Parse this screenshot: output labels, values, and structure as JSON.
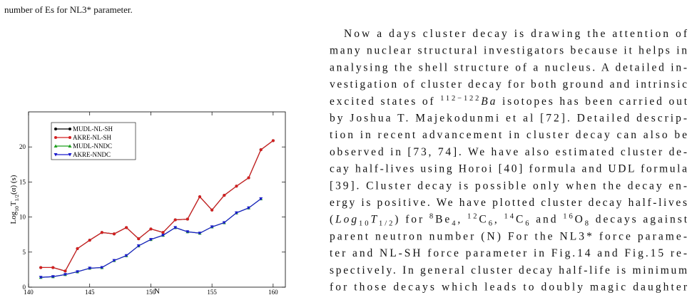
{
  "caption_fragment": "number of Es for NL3* parameter.",
  "chart_data": {
    "type": "line",
    "xlabel": "N",
    "ylabel": [
      "Log",
      {
        "text": "10",
        "style": "sub"
      },
      "T",
      {
        "text": "1/2",
        "style": "sub"
      },
      "(α) (s)"
    ],
    "xlim": [
      140,
      161
    ],
    "xticks": [
      140,
      145,
      150,
      155,
      160
    ],
    "ylim": [
      0,
      25
    ],
    "yticks": [
      0,
      5,
      10,
      15,
      20
    ],
    "legend": "upper left",
    "series": [
      {
        "name": "MUDL-NL-SH",
        "color": "#000000",
        "marker": "circle",
        "x": [
          141,
          142,
          143,
          144,
          145,
          146,
          147,
          148,
          149,
          150,
          151,
          152,
          153,
          154,
          155,
          156,
          157,
          158,
          159,
          160
        ],
        "values": [
          2.8,
          2.8,
          2.3,
          5.5,
          6.7,
          7.8,
          7.6,
          8.5,
          6.9,
          8.3,
          7.8,
          9.6,
          9.7,
          12.9,
          11.0,
          13.1,
          14.4,
          15.6,
          19.6,
          20.9
        ]
      },
      {
        "name": "AKRE-NL-SH",
        "color": "#d42020",
        "marker": "circle",
        "x": [
          141,
          142,
          143,
          144,
          145,
          146,
          147,
          148,
          149,
          150,
          151,
          152,
          153,
          154,
          155,
          156,
          157,
          158,
          159,
          160
        ],
        "values": [
          2.8,
          2.8,
          2.3,
          5.5,
          6.7,
          7.8,
          7.6,
          8.5,
          6.9,
          8.3,
          7.8,
          9.6,
          9.7,
          12.9,
          11.0,
          13.1,
          14.4,
          15.6,
          19.6,
          20.9
        ]
      },
      {
        "name": "MUDL-NNDC",
        "color": "#1fa01f",
        "marker": "triangle-up",
        "x": [
          141,
          142,
          143,
          144,
          145,
          146,
          147,
          148,
          149,
          150,
          151,
          152,
          153,
          154,
          155,
          156,
          157,
          158,
          159
        ],
        "values": [
          1.4,
          1.5,
          1.8,
          2.2,
          2.7,
          2.8,
          3.8,
          4.5,
          5.9,
          6.8,
          7.4,
          8.5,
          7.9,
          7.7,
          8.6,
          9.2,
          10.6,
          11.3,
          12.6
        ]
      },
      {
        "name": "AKRE-NNDC",
        "color": "#1a1acc",
        "marker": "triangle-down",
        "x": [
          141,
          142,
          143,
          144,
          145,
          146,
          147,
          148,
          149,
          150,
          151,
          152,
          153,
          154,
          155,
          156,
          157,
          158,
          159
        ],
        "values": [
          1.4,
          1.5,
          1.8,
          2.2,
          2.7,
          2.8,
          3.8,
          4.5,
          5.9,
          6.8,
          7.4,
          8.5,
          7.9,
          7.7,
          8.6,
          9.2,
          10.6,
          11.3,
          12.6
        ]
      }
    ]
  },
  "body_text": [
    [
      "Now a days cluster decay is drawing the attention of"
    ],
    [
      "many nuclear structural investigators because it helps in"
    ],
    [
      "analysing the shell structure of a nucleus. A detailed in-"
    ],
    [
      "vestigation of cluster decay for both ground and intrinsic"
    ],
    [
      "excited states of ",
      {
        "text": "112−122",
        "style": "sup"
      },
      {
        "text": "Ba",
        "style": "i"
      },
      " isotopes has been carried out"
    ],
    [
      "by Joshua T. Majekodunmi et al [72]. Detailed descrip-"
    ],
    [
      "tion in recent advancement in cluster decay can also be"
    ],
    [
      "observed in [73, 74]. We have also estimated cluster de-"
    ],
    [
      "cay half-lives using Horoi [40] formula and UDL formula"
    ],
    [
      "[39]. Cluster decay is possible only when the decay en-"
    ],
    [
      "ergy is positive. We have plotted cluster decay half-lives"
    ],
    [
      "(",
      {
        "text": "Log",
        "style": "i"
      },
      {
        "text": "10",
        "style": "sub"
      },
      {
        "text": "T",
        "style": "i"
      },
      {
        "text": "1/2",
        "style": "sub"
      },
      ") for ",
      {
        "text": "8",
        "style": "sup"
      },
      "Be",
      {
        "text": "4",
        "style": "sub"
      },
      ", ",
      {
        "text": "12",
        "style": "sup"
      },
      "C",
      {
        "text": "6",
        "style": "sub"
      },
      ", ",
      {
        "text": "14",
        "style": "sup"
      },
      "C",
      {
        "text": "6",
        "style": "sub"
      },
      " and ",
      {
        "text": "16",
        "style": "sup"
      },
      "O",
      {
        "text": "8",
        "style": "sub"
      },
      " decays against"
    ],
    [
      "parent neutron number (N) For the NL3* force parame-"
    ],
    [
      "ter and NL-SH force parameter in Fig.14 and Fig.15 re-"
    ],
    [
      "spectively. In general cluster decay half-life is minimum"
    ],
    [
      "for those decays which leads to doubly magic daughter"
    ]
  ]
}
